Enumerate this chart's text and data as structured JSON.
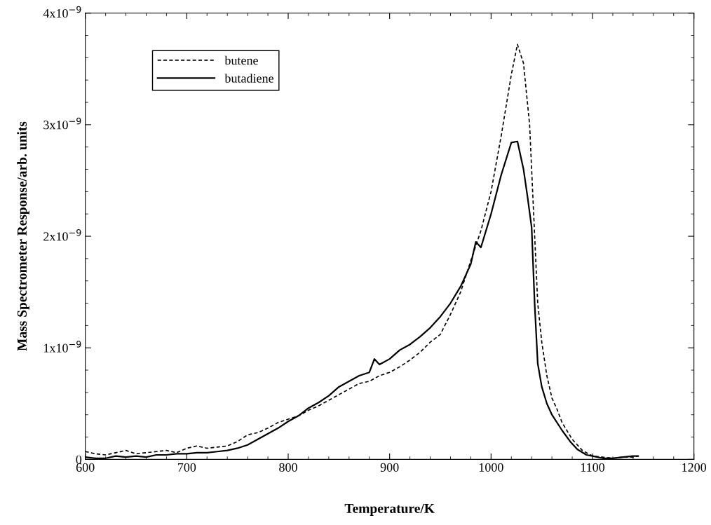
{
  "chart_data": {
    "type": "line",
    "xlabel": "Temperature/K",
    "ylabel": "Mass Spectrometer Response/arb. units",
    "xlim": [
      600,
      1200
    ],
    "xticks": [
      600,
      700,
      800,
      900,
      1000,
      1100,
      1200
    ],
    "ylim": [
      0,
      4e-09
    ],
    "yticks": [
      0,
      {
        "value": 1e-09,
        "label": "1x10$^{−9}$"
      },
      {
        "value": 2e-09,
        "label": "2x10$^{−9}$"
      },
      {
        "value": 3e-09,
        "label": "3x10$^{−9}$"
      },
      {
        "value": 4e-09,
        "label": "4x10$^{−9}$"
      }
    ],
    "legend": "top left",
    "grid": false,
    "series": [
      {
        "name": "butene",
        "color": "#000000",
        "line_style": "dashed",
        "x": [
          600,
          610,
          620,
          630,
          640,
          650,
          660,
          670,
          680,
          690,
          700,
          710,
          720,
          730,
          740,
          750,
          760,
          770,
          780,
          790,
          800,
          810,
          820,
          830,
          840,
          850,
          860,
          870,
          880,
          890,
          900,
          910,
          920,
          930,
          940,
          950,
          960,
          970,
          980,
          990,
          1000,
          1010,
          1020,
          1026,
          1032,
          1038,
          1042,
          1046,
          1050,
          1055,
          1060,
          1065,
          1070,
          1080,
          1090,
          1100,
          1110,
          1120,
          1130,
          1140,
          1145
        ],
        "values": [
          7e-11,
          5e-11,
          4e-11,
          6e-11,
          8e-11,
          5e-11,
          6e-11,
          7e-11,
          8e-11,
          6e-11,
          1e-10,
          1.2e-10,
          1e-10,
          1.1e-10,
          1.2e-10,
          1.6e-10,
          2.2e-10,
          2.4e-10,
          2.8e-10,
          3.3e-10,
          3.6e-10,
          3.9e-10,
          4.4e-10,
          4.8e-10,
          5.3e-10,
          5.8e-10,
          6.3e-10,
          6.8e-10,
          7e-10,
          7.5e-10,
          7.8e-10,
          8.3e-10,
          8.9e-10,
          9.6e-10,
          1.05e-09,
          1.12e-09,
          1.3e-09,
          1.5e-09,
          1.78e-09,
          2.05e-09,
          2.4e-09,
          2.9e-09,
          3.45e-09,
          3.72e-09,
          3.55e-09,
          3e-09,
          2.2e-09,
          1.4e-09,
          1.05e-09,
          7.5e-10,
          5.5e-10,
          4.5e-10,
          3.3e-10,
          1.8e-10,
          8e-11,
          3e-11,
          2e-11,
          1e-11,
          2e-11,
          2e-11,
          3e-11
        ]
      },
      {
        "name": "butadiene",
        "color": "#000000",
        "line_style": "solid",
        "x": [
          600,
          610,
          620,
          630,
          640,
          650,
          660,
          670,
          680,
          690,
          700,
          710,
          720,
          730,
          740,
          750,
          760,
          770,
          780,
          790,
          800,
          810,
          820,
          830,
          840,
          850,
          860,
          870,
          880,
          885,
          890,
          900,
          910,
          920,
          930,
          940,
          950,
          960,
          970,
          980,
          985,
          990,
          1000,
          1010,
          1020,
          1026,
          1032,
          1036,
          1040,
          1043,
          1046,
          1050,
          1055,
          1060,
          1070,
          1078,
          1085,
          1094,
          1100,
          1110,
          1120,
          1130,
          1140,
          1145
        ],
        "values": [
          2e-11,
          1e-11,
          1e-11,
          3e-11,
          2e-11,
          3e-11,
          2e-11,
          4e-11,
          4e-11,
          5e-11,
          5e-11,
          6e-11,
          6e-11,
          7e-11,
          8e-11,
          1e-10,
          1.3e-10,
          1.8e-10,
          2.3e-10,
          2.8e-10,
          3.4e-10,
          3.9e-10,
          4.6e-10,
          5.1e-10,
          5.7e-10,
          6.5e-10,
          7e-10,
          7.5e-10,
          7.8e-10,
          9e-10,
          8.5e-10,
          9e-10,
          9.8e-10,
          1.03e-09,
          1.1e-09,
          1.18e-09,
          1.28e-09,
          1.4e-09,
          1.55e-09,
          1.75e-09,
          1.95e-09,
          1.9e-09,
          2.2e-09,
          2.55e-09,
          2.84e-09,
          2.85e-09,
          2.6e-09,
          2.35e-09,
          2.08e-09,
          1.39e-09,
          8.6e-10,
          6.5e-10,
          5e-10,
          4e-10,
          2.6e-10,
          1.6e-10,
          9e-11,
          4e-11,
          3e-11,
          1e-11,
          1e-11,
          2e-11,
          3e-11,
          3e-11
        ]
      }
    ]
  }
}
